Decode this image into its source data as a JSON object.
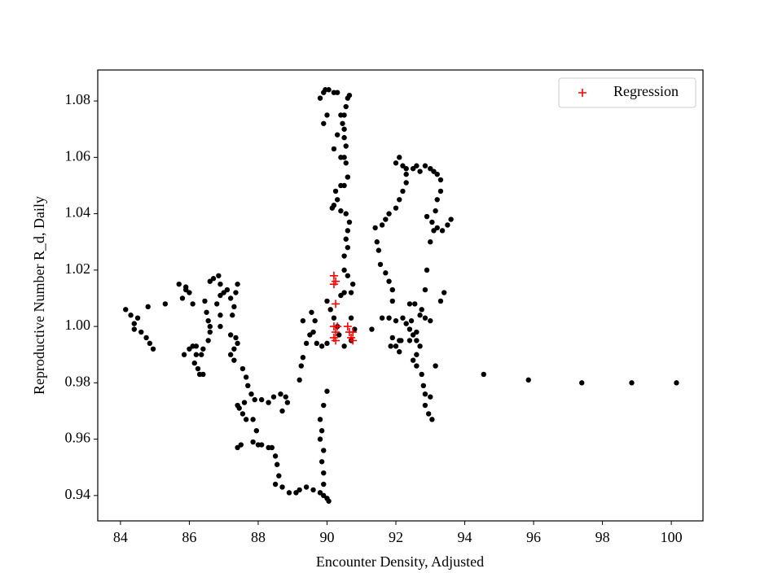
{
  "chart_data": {
    "type": "scatter",
    "x_label": "Encounter Density, Adjusted",
    "y_label": "Reproductive Number R_d, Daily",
    "xlim": [
      83.34,
      100.92
    ],
    "ylim": [
      0.931,
      1.091
    ],
    "xticks": [
      84,
      86,
      88,
      90,
      92,
      94,
      96,
      98,
      100
    ],
    "yticks": [
      0.94,
      0.96,
      0.98,
      {
        "value": 1,
        "label": "1.00"
      },
      1.02,
      1.04,
      1.06,
      1.08
    ],
    "legend": "upper right",
    "series": [
      {
        "color": "#000000",
        "marker": "dot",
        "x": [
          84.15,
          84.3,
          84.4,
          84.4,
          84.5,
          84.6,
          84.75,
          84.85,
          84.95,
          84.8,
          85.3,
          85.7,
          85.9,
          85.8,
          86.1,
          85.9,
          86.0,
          85.85,
          86.0,
          86.1,
          86.2,
          86.15,
          86.25,
          86.3,
          86.4,
          86.35,
          86.4,
          86.2,
          86.5,
          86.55,
          86.6,
          86.6,
          86.55,
          86.45,
          86.6,
          86.7,
          86.85,
          86.9,
          87.0,
          86.9,
          86.8,
          86.9,
          86.9,
          87.1,
          87.2,
          87.3,
          87.4,
          87.35,
          87.25,
          87.2,
          87.35,
          87.4,
          87.3,
          87.2,
          87.3,
          87.55,
          87.65,
          87.7,
          87.8,
          87.9,
          87.6,
          87.45,
          87.55,
          87.65,
          87.85,
          87.95,
          87.5,
          87.4,
          87.85,
          88.0,
          88.1,
          88.3,
          88.4,
          88.5,
          88.55,
          88.6,
          88.5,
          88.7,
          88.9,
          89.1,
          89.2,
          89.4,
          89.6,
          89.8,
          89.9,
          90.0,
          90.05,
          89.9,
          89.9,
          89.85,
          89.9,
          89.8,
          89.85,
          89.8,
          89.9,
          90.0,
          88.3,
          88.45,
          88.65,
          88.8,
          88.85,
          88.1,
          88.7,
          87.4,
          89.2,
          89.25,
          89.3,
          89.4,
          89.5,
          89.3,
          89.65,
          89.6,
          89.7,
          89.85,
          90.0,
          89.55,
          90.0,
          90.1,
          90.2,
          90.3,
          90.35,
          90.5,
          90.4,
          90.5,
          90.7,
          90.75,
          90.6,
          90.5,
          90.5,
          90.6,
          90.55,
          90.6,
          90.65,
          90.55,
          90.4,
          90.3,
          90.2,
          90.15,
          90.25,
          90.4,
          90.5,
          90.6,
          90.55,
          90.5,
          90.55,
          90.5,
          90.5,
          90.45,
          90.5,
          90.55,
          90.6,
          90.65,
          90.3,
          90.2,
          90.4,
          90.3,
          90.2,
          90.0,
          89.9,
          89.8,
          89.9,
          89.95,
          90.05,
          90.4,
          90.7,
          90.8,
          90.7,
          91.3,
          91.4,
          91.45,
          91.5,
          91.55,
          91.7,
          91.8,
          91.9,
          91.9,
          91.8,
          91.6,
          91.9,
          91.85,
          92.0,
          92.1,
          92.15,
          92.3,
          92.4,
          92.5,
          92.6,
          92.7,
          92.6,
          92.5,
          92.6,
          92.75,
          92.8,
          92.85,
          92.85,
          92.95,
          93.05,
          93.0,
          93.15,
          92.6,
          92.7,
          92.4,
          92.55,
          92.75,
          92.85,
          93.0,
          92.2,
          92.45,
          92.4,
          92.1,
          92.0,
          91.6,
          91.7,
          91.8,
          92.0,
          92.1,
          92.2,
          92.3,
          92.3,
          92.2,
          92.0,
          92.1,
          92.3,
          92.5,
          92.6,
          92.7,
          92.85,
          93.0,
          93.1,
          93.2,
          93.3,
          93.3,
          93.2,
          93.15,
          92.9,
          93.05,
          93.2,
          93.35,
          93.5,
          93.6,
          93.1,
          93.0,
          92.9,
          92.85,
          93.3,
          93.4,
          94.55,
          95.85,
          97.4,
          98.85,
          100.15
        ],
        "values": [
          1.006,
          1.004,
          1.001,
          0.999,
          1.003,
          0.998,
          0.996,
          0.994,
          0.992,
          1.007,
          1.008,
          1.015,
          1.013,
          1.01,
          1.008,
          1.014,
          1.012,
          0.99,
          0.992,
          0.993,
          0.99,
          0.987,
          0.985,
          0.983,
          0.983,
          0.99,
          0.992,
          0.993,
          1.005,
          1.002,
          1.0,
          0.998,
          0.995,
          1.009,
          1.016,
          1.017,
          1.018,
          1.015,
          1.012,
          1.011,
          1.008,
          1.004,
          1.0,
          1.013,
          1.01,
          1.007,
          1.015,
          1.012,
          1.004,
          0.997,
          0.996,
          0.994,
          0.992,
          0.99,
          0.988,
          0.985,
          0.982,
          0.979,
          0.976,
          0.974,
          0.973,
          0.971,
          0.969,
          0.967,
          0.967,
          0.963,
          0.958,
          0.957,
          0.959,
          0.958,
          0.958,
          0.957,
          0.957,
          0.954,
          0.951,
          0.947,
          0.944,
          0.943,
          0.941,
          0.941,
          0.942,
          0.943,
          0.942,
          0.941,
          0.94,
          0.939,
          0.938,
          0.944,
          0.948,
          0.952,
          0.956,
          0.96,
          0.963,
          0.967,
          0.972,
          0.977,
          0.973,
          0.975,
          0.976,
          0.975,
          0.973,
          0.974,
          0.97,
          0.972,
          0.981,
          0.986,
          0.989,
          0.994,
          0.997,
          1.002,
          1.002,
          0.998,
          0.994,
          0.993,
          0.994,
          1.005,
          1.009,
          1.006,
          1.003,
          1.0,
          0.997,
          0.993,
          1.011,
          1.012,
          1.012,
          1.015,
          1.018,
          1.02,
          1.025,
          1.028,
          1.031,
          1.034,
          1.037,
          1.04,
          1.041,
          1.045,
          1.043,
          1.042,
          1.048,
          1.05,
          1.05,
          1.053,
          1.058,
          1.06,
          1.064,
          1.067,
          1.07,
          1.072,
          1.075,
          1.078,
          1.081,
          1.082,
          1.083,
          1.083,
          1.075,
          1.068,
          1.063,
          1.075,
          1.072,
          1.081,
          1.083,
          1.084,
          1.084,
          1.06,
          1.003,
          0.999,
          0.995,
          0.999,
          1.035,
          1.03,
          1.027,
          1.022,
          1.019,
          1.016,
          1.013,
          1.009,
          1.003,
          1.003,
          0.996,
          0.993,
          0.993,
          0.991,
          0.995,
          1.001,
          0.999,
          0.997,
          0.995,
          0.993,
          0.99,
          0.988,
          0.986,
          0.983,
          0.979,
          0.976,
          0.972,
          0.969,
          0.967,
          0.975,
          0.986,
          0.998,
          1.004,
          1.008,
          1.008,
          1.006,
          1.003,
          1.002,
          1.003,
          1.002,
          0.995,
          0.995,
          1.002,
          1.036,
          1.038,
          1.04,
          1.042,
          1.045,
          1.048,
          1.051,
          1.054,
          1.057,
          1.058,
          1.06,
          1.056,
          1.056,
          1.057,
          1.055,
          1.057,
          1.056,
          1.055,
          1.054,
          1.052,
          1.048,
          1.045,
          1.041,
          1.039,
          1.037,
          1.035,
          1.034,
          1.036,
          1.038,
          1.034,
          1.03,
          1.02,
          1.013,
          1.009,
          1.012,
          0.983,
          0.981,
          0.98,
          0.98,
          0.98
        ]
      },
      {
        "name": "Regression",
        "color": "#ff0000",
        "marker": "plus",
        "x": [
          90.2,
          90.25,
          90.2,
          90.25,
          90.2,
          90.25,
          90.2,
          90.25,
          90.6,
          90.65,
          90.75,
          90.7,
          90.75,
          90.3
        ],
        "values": [
          1.018,
          1.016,
          1.015,
          1.008,
          1.0,
          0.998,
          0.996,
          0.995,
          1.0,
          0.998,
          0.998,
          0.996,
          0.995,
          1.0
        ]
      }
    ]
  }
}
